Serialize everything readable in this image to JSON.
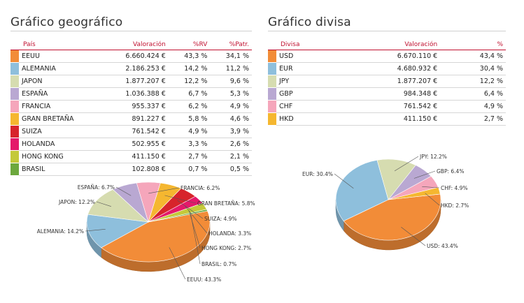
{
  "geo": {
    "title": "Gráfico geográfico",
    "headers": {
      "name": "País",
      "val": "Valoración",
      "rv": "%RV",
      "patr": "%Patr."
    },
    "rows": [
      {
        "name": "EEUU",
        "val": "6.660.424 €",
        "rv": "43,3 %",
        "patr": "34,1 %",
        "color": "#f28c38"
      },
      {
        "name": "ALEMANIA",
        "val": "2.186.253 €",
        "rv": "14,2 %",
        "patr": "11,2 %",
        "color": "#8ebfdc"
      },
      {
        "name": "JAPON",
        "val": "1.877.207 €",
        "rv": "12,2 %",
        "patr": "9,6 %",
        "color": "#d6dcb0"
      },
      {
        "name": "ESPAÑA",
        "val": "1.036.388 €",
        "rv": "6,7 %",
        "patr": "5,3 %",
        "color": "#b9a8d2"
      },
      {
        "name": "FRANCIA",
        "val": "955.337 €",
        "rv": "6,2 %",
        "patr": "4,9 %",
        "color": "#f5a6bb"
      },
      {
        "name": "GRAN BRETAÑA",
        "val": "891.227 €",
        "rv": "5,8 %",
        "patr": "4,6 %",
        "color": "#f5b730"
      },
      {
        "name": "SUIZA",
        "val": "761.542 €",
        "rv": "4,9 %",
        "patr": "3,9 %",
        "color": "#d7242b"
      },
      {
        "name": "HOLANDA",
        "val": "502.955 €",
        "rv": "3,3 %",
        "patr": "2,6 %",
        "color": "#e4196a"
      },
      {
        "name": "HONG KONG",
        "val": "411.150 €",
        "rv": "2,7 %",
        "patr": "2,1 %",
        "color": "#c4c93a"
      },
      {
        "name": "BRASIL",
        "val": "102.808 €",
        "rv": "0,7 %",
        "patr": "0,5 %",
        "color": "#6ca83d"
      }
    ]
  },
  "div": {
    "title": "Gráfico divisa",
    "headers": {
      "name": "Divisa",
      "val": "Valoración",
      "pct": "%"
    },
    "rows": [
      {
        "name": "USD",
        "val": "6.670.110 €",
        "pct": "43,4 %",
        "color": "#f28c38"
      },
      {
        "name": "EUR",
        "val": "4.680.932 €",
        "pct": "30,4 %",
        "color": "#8ebfdc"
      },
      {
        "name": "JPY",
        "val": "1.877.207 €",
        "pct": "12,2 %",
        "color": "#d6dcb0"
      },
      {
        "name": "GBP",
        "val": "984.348 €",
        "pct": "6,4 %",
        "color": "#b9a8d2"
      },
      {
        "name": "CHF",
        "val": "761.542 €",
        "pct": "4,9 %",
        "color": "#f5a6bb"
      },
      {
        "name": "HKD",
        "val": "411.150 €",
        "pct": "2,7 %",
        "color": "#f5b730"
      }
    ]
  },
  "chart_data": [
    {
      "type": "pie",
      "slices": [
        {
          "label": "EEUU: 43.3%",
          "value": 43.3,
          "color": "#f28c38"
        },
        {
          "label": "ALEMANIA: 14.2%",
          "value": 14.2,
          "color": "#8ebfdc"
        },
        {
          "label": "JAPON: 12.2%",
          "value": 12.2,
          "color": "#d6dcb0"
        },
        {
          "label": "ESPAÑA: 6.7%",
          "value": 6.7,
          "color": "#b9a8d2"
        },
        {
          "label": "FRANCIA: 6.2%",
          "value": 6.2,
          "color": "#f5a6bb"
        },
        {
          "label": "GRAN BRETAÑA: 5.8%",
          "value": 5.8,
          "color": "#f5b730"
        },
        {
          "label": "SUIZA: 4.9%",
          "value": 4.9,
          "color": "#d7242b"
        },
        {
          "label": "HOLANDA: 3.3%",
          "value": 3.3,
          "color": "#e4196a"
        },
        {
          "label": "HONG KONG: 2.7%",
          "value": 2.7,
          "color": "#c4c93a"
        },
        {
          "label": "BRASIL: 0.7%",
          "value": 0.7,
          "color": "#6ca83d"
        }
      ]
    },
    {
      "type": "pie",
      "slices": [
        {
          "label": "USD: 43.4%",
          "value": 43.4,
          "color": "#f28c38"
        },
        {
          "label": "EUR: 30.4%",
          "value": 30.4,
          "color": "#8ebfdc"
        },
        {
          "label": "JPY: 12.2%",
          "value": 12.2,
          "color": "#d6dcb0"
        },
        {
          "label": "GBP: 6.4%",
          "value": 6.4,
          "color": "#b9a8d2"
        },
        {
          "label": "CHF: 4.9%",
          "value": 4.9,
          "color": "#f5a6bb"
        },
        {
          "label": "HKD: 2.7%",
          "value": 2.7,
          "color": "#f5b730"
        }
      ]
    }
  ]
}
